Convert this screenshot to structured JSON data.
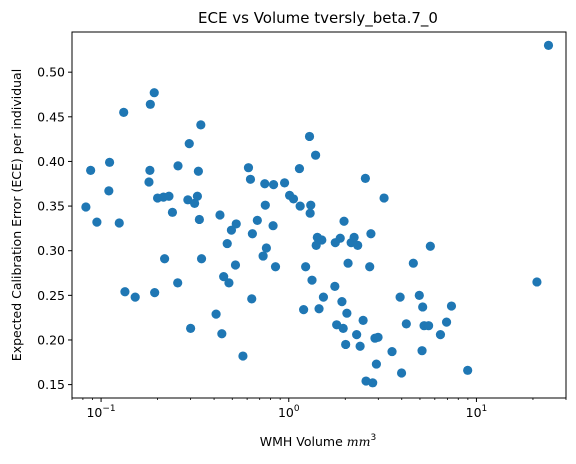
{
  "chart_data": {
    "type": "scatter",
    "title": "ECE vs Volume tversly_beta.7_0",
    "xlabel": "WMH Volume",
    "xlabel_unit": "mm",
    "xlabel_unit_sup": "3",
    "ylabel": "Expected Calibration Error (ECE) per individual",
    "xscale": "log",
    "xlim": [
      0.07,
      30
    ],
    "ylim": [
      0.135,
      0.545
    ],
    "x_major_ticks": [
      0.1,
      1,
      10
    ],
    "x_tick_labels": [
      {
        "base": "10",
        "exp": "−1"
      },
      {
        "base": "10",
        "exp": "0"
      },
      {
        "base": "10",
        "exp": "1"
      }
    ],
    "y_ticks": [
      0.15,
      0.2,
      0.25,
      0.3,
      0.35,
      0.4,
      0.45,
      0.5
    ],
    "y_tick_labels": [
      "0.15",
      "0.20",
      "0.25",
      "0.30",
      "0.35",
      "0.40",
      "0.45",
      "0.50"
    ],
    "marker_color": "#1f77b4",
    "grid": false,
    "legend": "none",
    "points": [
      {
        "x": 0.083,
        "y": 0.349
      },
      {
        "x": 0.088,
        "y": 0.39
      },
      {
        "x": 0.095,
        "y": 0.332
      },
      {
        "x": 0.11,
        "y": 0.367
      },
      {
        "x": 0.111,
        "y": 0.399
      },
      {
        "x": 0.125,
        "y": 0.331
      },
      {
        "x": 0.132,
        "y": 0.455
      },
      {
        "x": 0.134,
        "y": 0.254
      },
      {
        "x": 0.152,
        "y": 0.248
      },
      {
        "x": 0.18,
        "y": 0.377
      },
      {
        "x": 0.182,
        "y": 0.39
      },
      {
        "x": 0.183,
        "y": 0.464
      },
      {
        "x": 0.192,
        "y": 0.477
      },
      {
        "x": 0.193,
        "y": 0.253
      },
      {
        "x": 0.2,
        "y": 0.359
      },
      {
        "x": 0.215,
        "y": 0.36
      },
      {
        "x": 0.218,
        "y": 0.291
      },
      {
        "x": 0.23,
        "y": 0.361
      },
      {
        "x": 0.24,
        "y": 0.343
      },
      {
        "x": 0.256,
        "y": 0.264
      },
      {
        "x": 0.257,
        "y": 0.395
      },
      {
        "x": 0.29,
        "y": 0.357
      },
      {
        "x": 0.295,
        "y": 0.42
      },
      {
        "x": 0.3,
        "y": 0.213
      },
      {
        "x": 0.315,
        "y": 0.353
      },
      {
        "x": 0.326,
        "y": 0.361
      },
      {
        "x": 0.33,
        "y": 0.389
      },
      {
        "x": 0.334,
        "y": 0.335
      },
      {
        "x": 0.34,
        "y": 0.441
      },
      {
        "x": 0.343,
        "y": 0.291
      },
      {
        "x": 0.41,
        "y": 0.229
      },
      {
        "x": 0.43,
        "y": 0.34
      },
      {
        "x": 0.44,
        "y": 0.207
      },
      {
        "x": 0.45,
        "y": 0.271
      },
      {
        "x": 0.47,
        "y": 0.308
      },
      {
        "x": 0.48,
        "y": 0.264
      },
      {
        "x": 0.495,
        "y": 0.323
      },
      {
        "x": 0.52,
        "y": 0.284
      },
      {
        "x": 0.525,
        "y": 0.33
      },
      {
        "x": 0.57,
        "y": 0.182
      },
      {
        "x": 0.61,
        "y": 0.393
      },
      {
        "x": 0.625,
        "y": 0.38
      },
      {
        "x": 0.635,
        "y": 0.246
      },
      {
        "x": 0.64,
        "y": 0.319
      },
      {
        "x": 0.68,
        "y": 0.334
      },
      {
        "x": 0.73,
        "y": 0.294
      },
      {
        "x": 0.745,
        "y": 0.375
      },
      {
        "x": 0.75,
        "y": 0.351
      },
      {
        "x": 0.76,
        "y": 0.303
      },
      {
        "x": 0.825,
        "y": 0.328
      },
      {
        "x": 0.83,
        "y": 0.374
      },
      {
        "x": 0.85,
        "y": 0.282
      },
      {
        "x": 0.95,
        "y": 0.376
      },
      {
        "x": 1.01,
        "y": 0.362
      },
      {
        "x": 1.06,
        "y": 0.358
      },
      {
        "x": 1.14,
        "y": 0.392
      },
      {
        "x": 1.15,
        "y": 0.35
      },
      {
        "x": 1.2,
        "y": 0.234
      },
      {
        "x": 1.23,
        "y": 0.282
      },
      {
        "x": 1.29,
        "y": 0.428
      },
      {
        "x": 1.3,
        "y": 0.342
      },
      {
        "x": 1.31,
        "y": 0.351
      },
      {
        "x": 1.33,
        "y": 0.267
      },
      {
        "x": 1.39,
        "y": 0.407
      },
      {
        "x": 1.4,
        "y": 0.306
      },
      {
        "x": 1.42,
        "y": 0.315
      },
      {
        "x": 1.45,
        "y": 0.235
      },
      {
        "x": 1.5,
        "y": 0.312
      },
      {
        "x": 1.53,
        "y": 0.248
      },
      {
        "x": 1.76,
        "y": 0.26
      },
      {
        "x": 1.77,
        "y": 0.309
      },
      {
        "x": 1.8,
        "y": 0.217
      },
      {
        "x": 1.88,
        "y": 0.314
      },
      {
        "x": 1.92,
        "y": 0.243
      },
      {
        "x": 1.95,
        "y": 0.213
      },
      {
        "x": 1.97,
        "y": 0.333
      },
      {
        "x": 2.01,
        "y": 0.195
      },
      {
        "x": 2.04,
        "y": 0.23
      },
      {
        "x": 2.07,
        "y": 0.286
      },
      {
        "x": 2.15,
        "y": 0.309
      },
      {
        "x": 2.23,
        "y": 0.315
      },
      {
        "x": 2.3,
        "y": 0.206
      },
      {
        "x": 2.33,
        "y": 0.306
      },
      {
        "x": 2.4,
        "y": 0.193
      },
      {
        "x": 2.49,
        "y": 0.222
      },
      {
        "x": 2.56,
        "y": 0.381
      },
      {
        "x": 2.58,
        "y": 0.154
      },
      {
        "x": 2.7,
        "y": 0.282
      },
      {
        "x": 2.74,
        "y": 0.319
      },
      {
        "x": 2.8,
        "y": 0.152
      },
      {
        "x": 2.88,
        "y": 0.202
      },
      {
        "x": 2.93,
        "y": 0.173
      },
      {
        "x": 2.99,
        "y": 0.203
      },
      {
        "x": 3.22,
        "y": 0.359
      },
      {
        "x": 3.55,
        "y": 0.187
      },
      {
        "x": 3.92,
        "y": 0.248
      },
      {
        "x": 3.99,
        "y": 0.163
      },
      {
        "x": 4.23,
        "y": 0.218
      },
      {
        "x": 4.61,
        "y": 0.286
      },
      {
        "x": 4.96,
        "y": 0.25
      },
      {
        "x": 5.13,
        "y": 0.188
      },
      {
        "x": 5.17,
        "y": 0.237
      },
      {
        "x": 5.26,
        "y": 0.216
      },
      {
        "x": 5.56,
        "y": 0.216
      },
      {
        "x": 5.68,
        "y": 0.305
      },
      {
        "x": 6.43,
        "y": 0.206
      },
      {
        "x": 6.93,
        "y": 0.22
      },
      {
        "x": 7.36,
        "y": 0.238
      },
      {
        "x": 8.98,
        "y": 0.166
      },
      {
        "x": 21.0,
        "y": 0.265
      },
      {
        "x": 24.2,
        "y": 0.53
      }
    ]
  }
}
